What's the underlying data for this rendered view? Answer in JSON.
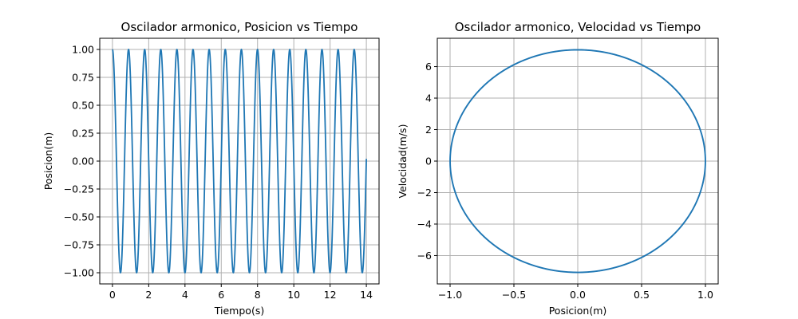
{
  "chart_data": [
    {
      "type": "line",
      "title": "Oscilador armonico, Posicion vs Tiempo",
      "xlabel": "Tiempo(s)",
      "ylabel": "Posicion(m)",
      "xlim": [
        -0.7,
        14.7
      ],
      "ylim": [
        -1.1,
        1.1
      ],
      "xticks": [
        0,
        2,
        4,
        6,
        8,
        10,
        12,
        14
      ],
      "xtick_labels": [
        "0",
        "2",
        "4",
        "6",
        "8",
        "10",
        "12",
        "14"
      ],
      "yticks": [
        1.0,
        0.75,
        0.5,
        0.25,
        0.0,
        -0.25,
        -0.5,
        -0.75,
        -1.0
      ],
      "ytick_labels": [
        "1.00",
        "0.75",
        "0.50",
        "0.25",
        "0.00",
        "−0.25",
        "−0.50",
        "−0.75",
        "−1.00"
      ],
      "grid": true,
      "color": "#1f77b4",
      "series": [
        {
          "function": "y = cos(omega * t)",
          "omega": 7.07,
          "t_range": [
            0,
            14
          ],
          "samples": 1400
        }
      ]
    },
    {
      "type": "line",
      "title": "Oscilador armonico, Velocidad vs Tiempo",
      "xlabel": "Posicion(m)",
      "ylabel": "Velocidad(m/s)",
      "xlim": [
        -1.1,
        1.1
      ],
      "ylim": [
        -7.8,
        7.8
      ],
      "xticks": [
        -1.0,
        -0.5,
        0.0,
        0.5,
        1.0
      ],
      "xtick_labels": [
        "−1.0",
        "−0.5",
        "0.0",
        "0.5",
        "1.0"
      ],
      "yticks": [
        6,
        4,
        2,
        0,
        -2,
        -4,
        -6
      ],
      "ytick_labels": [
        "6",
        "4",
        "2",
        "0",
        "−2",
        "−4",
        "−6"
      ],
      "grid": true,
      "color": "#1f77b4",
      "series": [
        {
          "function": "x = cos(omega * t), v = -omega * sin(omega * t)",
          "omega": 7.07,
          "t_range": [
            0,
            14
          ],
          "samples": 1400
        }
      ]
    }
  ]
}
